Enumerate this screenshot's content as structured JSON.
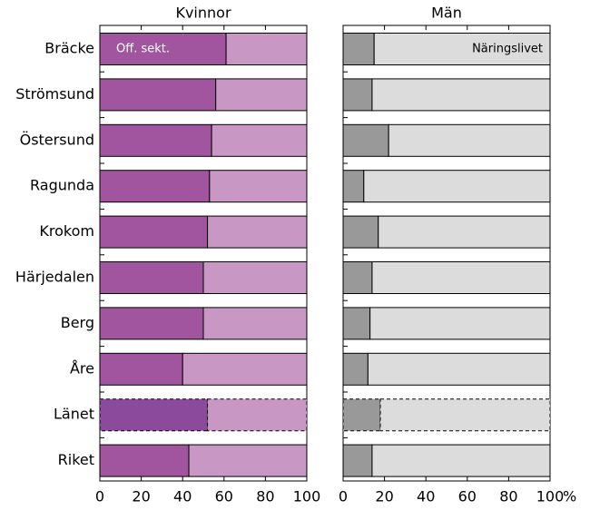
{
  "chart_data": [
    {
      "type": "bar100h",
      "title": "Kvinnor",
      "categories": [
        "Bräcke",
        "Strömsund",
        "Östersund",
        "Ragunda",
        "Krokom",
        "Härjedalen",
        "Berg",
        "Åre",
        "Länet",
        "Riket"
      ],
      "series": [
        {
          "name": "Off. sekt.",
          "color": "#a0559e",
          "values": [
            61,
            56,
            54,
            53,
            52,
            50,
            50,
            40,
            52,
            43
          ]
        },
        {
          "color": "#c897c4",
          "values": [
            39,
            44,
            46,
            47,
            48,
            50,
            50,
            60,
            48,
            57
          ]
        }
      ],
      "highlight": 8,
      "highlight_color": "#8c4a9c",
      "xlim": [
        0,
        100
      ],
      "xticks": [
        0,
        20,
        40,
        60,
        80,
        100
      ]
    },
    {
      "type": "bar100h",
      "title": "Män",
      "series": [
        {
          "color": "#999999",
          "values": [
            15,
            14,
            22,
            10,
            17,
            14,
            13,
            12,
            18,
            14
          ]
        },
        {
          "name": "Näringslivet",
          "color": "#dcdcdc",
          "values": [
            85,
            86,
            78,
            90,
            83,
            86,
            87,
            88,
            82,
            86
          ]
        }
      ],
      "highlight": 8,
      "xlim": [
        0,
        100
      ],
      "xticks": [
        0,
        20,
        40,
        60,
        80,
        100
      ],
      "xlabel": "%"
    }
  ]
}
